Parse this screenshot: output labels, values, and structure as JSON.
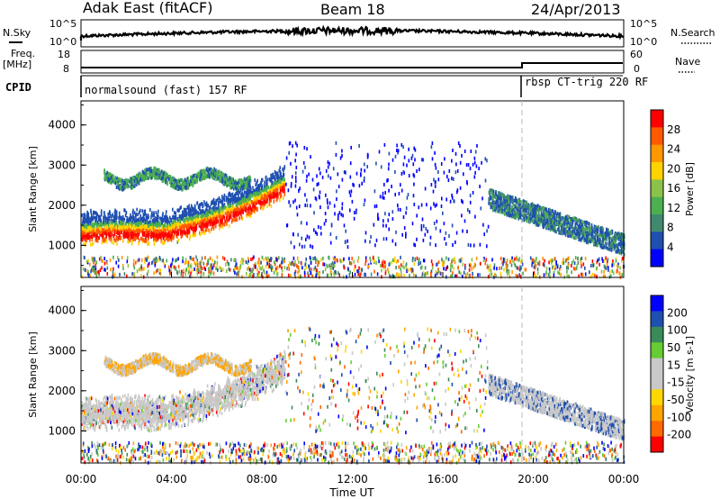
{
  "header": {
    "radar": "Adak East (fitACF)",
    "beam": "Beam 18",
    "date": "24/Apr/2013"
  },
  "side_labels": {
    "nsky": "N.Sky",
    "nsearch": "N.Search",
    "freq_top": "Freq.",
    "freq_unit": "[MHz]",
    "nave": "Nave",
    "cpid": "CPID"
  },
  "noise_axis": {
    "top": "10^5",
    "bottom": "10^0"
  },
  "freq_axis": {
    "left": [
      "18",
      "8"
    ],
    "right": [
      "60",
      "0"
    ]
  },
  "cpid_labels": {
    "first": "normalsound (fast) 157 RF",
    "second": "rbsp CT-trig 220 RF"
  },
  "colors": {
    "power_scale": [
      "#0000ff",
      "#1f4fb0",
      "#3f8a6f",
      "#4caf50",
      "#8bc34a",
      "#ffd200",
      "#ff9800",
      "#ff5a00",
      "#ff0000"
    ],
    "velocity_scale": [
      "#ff0000",
      "#ff6a00",
      "#ffa500",
      "#ffd700",
      "#c8c8c8",
      "#c8c8c8",
      "#66cc33",
      "#3a8a5a",
      "#1f4fb0",
      "#0000ff"
    ]
  },
  "chart_data": [
    {
      "type": "heatmap",
      "title": "",
      "quantity": "Power",
      "ylabel": "Slant Range [km]",
      "ylim": [
        200,
        4600
      ],
      "yticks": [
        1000,
        2000,
        3000,
        4000
      ],
      "colorbar_label": "Power [dB]",
      "colorbar_ticks": [
        4,
        8,
        12,
        16,
        20,
        24,
        28
      ],
      "colorbar_range": [
        0,
        32
      ],
      "features": [
        {
          "start_h": 0.0,
          "end_h": 9.0,
          "range_start_km": 1200,
          "range_end_km": 2400,
          "level_db": 26
        },
        {
          "start_h": 1.0,
          "end_h": 7.5,
          "range_start_km": 2700,
          "range_end_km": 3100,
          "level_db": 14
        },
        {
          "start_h": 18.0,
          "end_h": 24.0,
          "range_start_km": 2200,
          "range_end_km": 1000,
          "level_db": 10
        }
      ]
    },
    {
      "type": "heatmap",
      "title": "",
      "quantity": "Velocity",
      "ylabel": "Slant Range [km]",
      "ylim": [
        200,
        4600
      ],
      "yticks": [
        1000,
        2000,
        3000,
        4000
      ],
      "colorbar_label": "Velocity [m s-1]",
      "colorbar_ticks": [
        200,
        100,
        50,
        15,
        -15,
        -50,
        -100,
        -200
      ],
      "features": [
        {
          "start_h": 0.0,
          "end_h": 9.0,
          "range_start_km": 1200,
          "range_end_km": 2400,
          "velocity": 0
        },
        {
          "start_h": 18.0,
          "end_h": 24.0,
          "range_start_km": 2200,
          "range_end_km": 1000,
          "velocity": 0
        }
      ]
    }
  ],
  "time_axis": {
    "xlabel": "Time UT",
    "ticks": [
      "00:00",
      "04:00",
      "08:00",
      "12:00",
      "16:00",
      "20:00",
      "00:00"
    ],
    "xlim_hours": [
      0,
      24
    ]
  },
  "mode_change_hour": 19.5
}
